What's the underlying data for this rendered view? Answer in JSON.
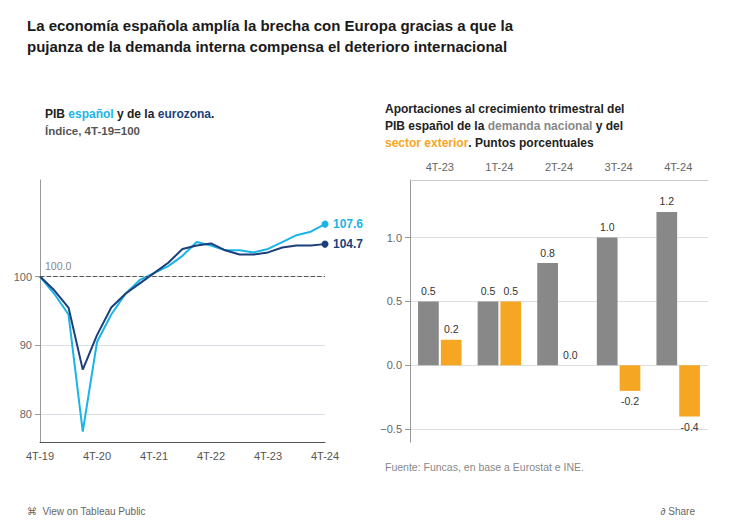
{
  "title": "La economía española amplía la brecha con Europa gracias a que la\npujanza de la demanda interna compensa el deterioro internacional",
  "annotations": [
    "Fuente: Funcas, en base a Eurostat e INE.",
    "⌘  View on Tableau Public",
    "∂ Share"
  ],
  "chart_data": [
    {
      "type": "line",
      "subtitle": [
        "PIB español y de la eurozona.",
        "Índice, 4T-19=100"
      ],
      "categories": [
        "4T-19",
        null,
        null,
        null,
        "4T-20",
        null,
        null,
        null,
        "4T-21",
        null,
        null,
        null,
        "4T-22",
        null,
        null,
        null,
        "4T-23",
        null,
        null,
        null,
        "4T-24"
      ],
      "series": [
        {
          "name": "español",
          "color": "#1ab4e8",
          "values": [
            100.0,
            97.5,
            94.5,
            77.5,
            90.5,
            94.5,
            97.5,
            99.5,
            100.5,
            101.5,
            103.0,
            105.0,
            104.5,
            103.8,
            103.8,
            103.5,
            104.0,
            105.0,
            106.0,
            106.5,
            107.6
          ],
          "end_label": "107.6"
        },
        {
          "name": "eurozona",
          "color": "#1a3f7a",
          "values": [
            100.0,
            98.0,
            95.5,
            86.5,
            91.5,
            95.5,
            97.5,
            99.0,
            100.5,
            102.0,
            104.0,
            104.5,
            104.8,
            103.8,
            103.2,
            103.2,
            103.5,
            104.2,
            104.5,
            104.5,
            104.7
          ],
          "end_label": "104.7"
        }
      ],
      "ylim": [
        76,
        114
      ],
      "yticks": [
        80,
        90,
        100
      ],
      "grid": true,
      "ref_line": {
        "value": 100.0,
        "label": "100.0"
      }
    },
    {
      "type": "bar",
      "subtitle": [
        "Aportaciones al crecimiento trimestral del",
        "PIB español de la demanda nacional y del",
        "sector exterior. Puntos porcentuales"
      ],
      "categories": [
        "4T-23",
        "1T-24",
        "2T-24",
        "3T-24",
        "4T-24"
      ],
      "series": [
        {
          "name": "demanda nacional",
          "color": "#888888",
          "values": [
            0.5,
            0.5,
            0.8,
            1.0,
            1.2
          ],
          "value_labels": [
            "0.5",
            "0.5",
            "0.8",
            "1.0",
            "1.2"
          ]
        },
        {
          "name": "sector exterior",
          "color": "#f5a623",
          "values": [
            0.2,
            0.5,
            0.0,
            -0.2,
            -0.4
          ],
          "value_labels": [
            "0.2",
            "0.5",
            "0.0",
            "-0.2",
            "-0.4"
          ]
        }
      ],
      "ylim": [
        -0.6,
        1.45
      ],
      "yticks": [
        {
          "value": -0.5,
          "label": "−0.5"
        },
        {
          "value": 0.0,
          "label": "0.0"
        },
        0.5,
        {
          "value": 1.0,
          "label": "1.0"
        }
      ],
      "grid": true,
      "data_labels": true
    }
  ]
}
